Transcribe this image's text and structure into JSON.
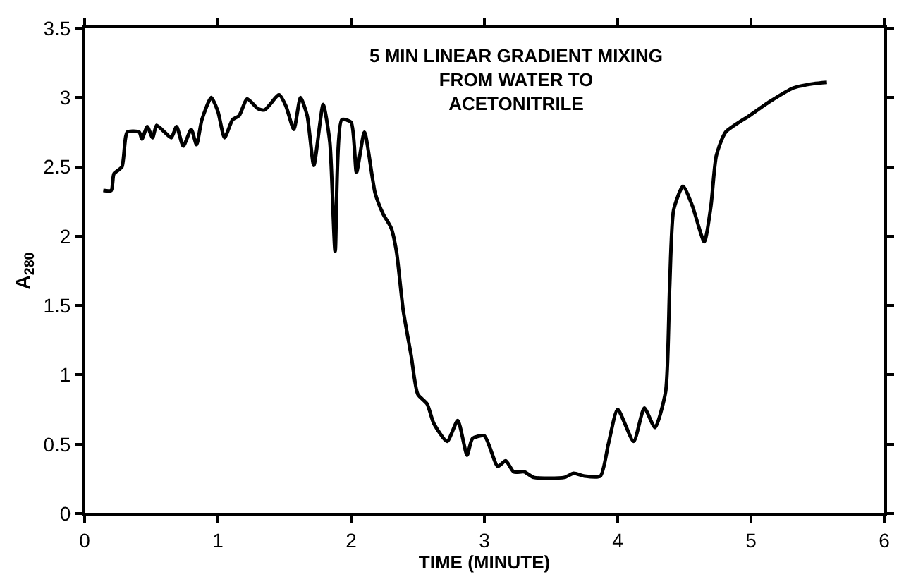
{
  "chart_data": {
    "type": "line",
    "xlabel": "TIME (MINUTE)",
    "ylabel": "A$_{280}$",
    "annotations": [
      "5 MIN LINEAR GRADIENT MIXING\nFROM WATER TO\nACETONITRILE"
    ],
    "x": [
      0.14,
      0.2,
      0.22,
      0.28,
      0.32,
      0.41,
      0.43,
      0.47,
      0.51,
      0.54,
      0.6,
      0.65,
      0.69,
      0.74,
      0.8,
      0.84,
      0.88,
      0.95,
      1.0,
      1.05,
      1.11,
      1.16,
      1.22,
      1.3,
      1.35,
      1.46,
      1.51,
      1.57,
      1.62,
      1.67,
      1.72,
      1.79,
      1.84,
      1.88,
      1.93,
      2.0,
      2.04,
      2.1,
      2.18,
      2.24,
      2.3,
      2.34,
      2.39,
      2.45,
      2.5,
      2.57,
      2.62,
      2.72,
      2.8,
      2.87,
      2.91,
      3.0,
      3.1,
      3.16,
      3.22,
      3.3,
      3.37,
      3.6,
      3.67,
      3.75,
      3.87,
      3.93,
      4.0,
      4.12,
      4.2,
      4.28,
      4.36,
      4.39,
      4.42,
      4.49,
      4.56,
      4.65,
      4.7,
      4.74,
      4.81,
      4.99,
      5.14,
      5.32,
      5.47,
      5.57
    ],
    "series": [
      {
        "color": "#000000",
        "values": [
          2.33,
          2.33,
          2.45,
          2.5,
          2.75,
          2.75,
          2.7,
          2.79,
          2.71,
          2.8,
          2.75,
          2.71,
          2.79,
          2.65,
          2.77,
          2.66,
          2.84,
          3.0,
          2.9,
          2.71,
          2.84,
          2.87,
          2.99,
          2.92,
          2.91,
          3.02,
          2.94,
          2.77,
          3.0,
          2.87,
          2.51,
          2.95,
          2.68,
          1.89,
          2.84,
          2.82,
          2.46,
          2.75,
          2.31,
          2.16,
          2.06,
          1.89,
          1.47,
          1.14,
          0.86,
          0.79,
          0.65,
          0.52,
          0.67,
          0.42,
          0.54,
          0.56,
          0.34,
          0.38,
          0.3,
          0.3,
          0.26,
          0.26,
          0.29,
          0.27,
          0.27,
          0.5,
          0.75,
          0.52,
          0.76,
          0.62,
          0.88,
          1.63,
          2.19,
          2.36,
          2.22,
          1.96,
          2.22,
          2.58,
          2.75,
          2.87,
          2.97,
          3.07,
          3.1,
          3.11
        ]
      }
    ],
    "xlim": [
      0,
      6
    ],
    "xticks": [
      0,
      1,
      2,
      3,
      4,
      5,
      6
    ],
    "ylim": [
      0,
      3.5
    ],
    "yticks": [
      0,
      0.5,
      1,
      1.5,
      2,
      2.5,
      3,
      3.5
    ],
    "marker": "none",
    "line_style": "solid"
  }
}
